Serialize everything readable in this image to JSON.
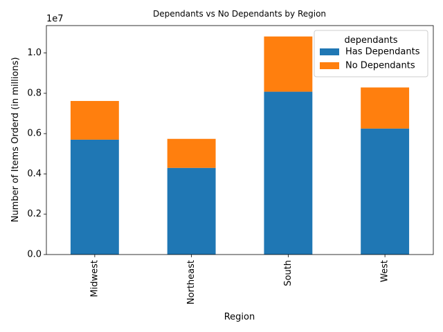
{
  "chart_data": {
    "type": "bar",
    "stacked": true,
    "title": "Dependants vs No Dependants by Region",
    "xlabel": "Region",
    "ylabel": "Number of Items Orderd (in millions)",
    "offset_label": "1e7",
    "categories": [
      "Midwest",
      "Northeast",
      "South",
      "West"
    ],
    "series": [
      {
        "name": "Has Dependants",
        "color": "#1f77b4",
        "values": [
          5700000,
          4300000,
          8080000,
          6250000
        ]
      },
      {
        "name": "No Dependants",
        "color": "#ff7f0e",
        "values": [
          1920000,
          1440000,
          2740000,
          2040000
        ]
      }
    ],
    "yticks": [
      "0.0",
      "0.2",
      "0.4",
      "0.6",
      "0.8",
      "1.0"
    ],
    "ylim": [
      0,
      11360000
    ],
    "legend": {
      "title": "dependants",
      "position": "top-right"
    },
    "grid": false
  }
}
